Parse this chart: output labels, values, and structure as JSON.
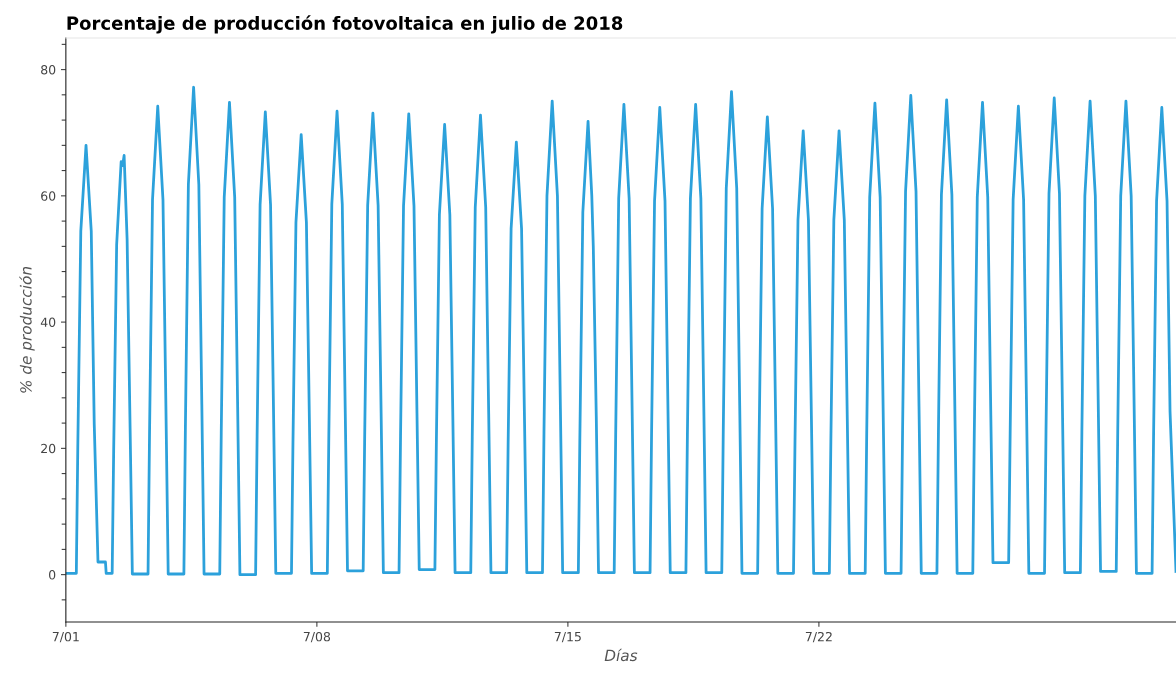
{
  "chart_data": {
    "type": "line",
    "title": "Porcentaje de producción fotovoltaica en julio de 2018",
    "xlabel": "Días",
    "ylabel": "% de producción",
    "xlim": [
      "2018-07-01T00:00",
      "2018-07-31T23:00"
    ],
    "ylim": [
      -7.5,
      85
    ],
    "xticks": [
      {
        "value": "2018-07-01",
        "label": "7/01"
      },
      {
        "value": "2018-07-08",
        "label": "7/08"
      },
      {
        "value": "2018-07-15",
        "label": "7/15"
      },
      {
        "value": "2018-07-22",
        "label": "7/22"
      }
    ],
    "yticks": [
      0,
      20,
      40,
      60,
      80
    ],
    "grid": false,
    "marker": "none",
    "line_style": "solid",
    "series": [
      {
        "color": "#2ca1db",
        "x": [
          "2018-07-01T00:00",
          "2018-07-01T07:00",
          "2018-07-01T08:00",
          "2018-07-01T10:00",
          "2018-07-01T13:30",
          "2018-07-01T17:00",
          "2018-07-01T19:00",
          "2018-07-01T21:30",
          "2018-07-02T02:30",
          "2018-07-02T03:00",
          "2018-07-02T07:00",
          "2018-07-02T08:00",
          "2018-07-02T10:00",
          "2018-07-02T13:00",
          "2018-07-02T14:00",
          "2018-07-02T15:00",
          "2018-07-02T17:00",
          "2018-07-02T19:00",
          "2018-07-02T20:30",
          "2018-07-03T07:00",
          "2018-07-03T08:00",
          "2018-07-03T10:00",
          "2018-07-03T13:30",
          "2018-07-03T17:00",
          "2018-07-03T19:00",
          "2018-07-03T20:30",
          "2018-07-04T07:00",
          "2018-07-04T08:00",
          "2018-07-04T10:00",
          "2018-07-04T13:30",
          "2018-07-04T17:00",
          "2018-07-04T19:00",
          "2018-07-04T20:30",
          "2018-07-05T07:00",
          "2018-07-05T08:00",
          "2018-07-05T10:00",
          "2018-07-05T13:30",
          "2018-07-05T17:00",
          "2018-07-05T19:00",
          "2018-07-05T20:30",
          "2018-07-06T07:00",
          "2018-07-06T08:00",
          "2018-07-06T10:00",
          "2018-07-06T13:30",
          "2018-07-06T17:00",
          "2018-07-06T19:00",
          "2018-07-06T20:30",
          "2018-07-07T07:00",
          "2018-07-07T08:00",
          "2018-07-07T10:00",
          "2018-07-07T13:30",
          "2018-07-07T17:00",
          "2018-07-07T19:00",
          "2018-07-07T20:30",
          "2018-07-08T07:00",
          "2018-07-08T08:00",
          "2018-07-08T10:00",
          "2018-07-08T13:30",
          "2018-07-08T17:00",
          "2018-07-08T19:00",
          "2018-07-08T20:30",
          "2018-07-09T07:00",
          "2018-07-09T08:00",
          "2018-07-09T10:00",
          "2018-07-09T13:30",
          "2018-07-09T17:00",
          "2018-07-09T19:00",
          "2018-07-09T20:30",
          "2018-07-10T07:00",
          "2018-07-10T08:00",
          "2018-07-10T10:00",
          "2018-07-10T13:30",
          "2018-07-10T17:00",
          "2018-07-10T19:00",
          "2018-07-10T20:30",
          "2018-07-11T07:00",
          "2018-07-11T08:00",
          "2018-07-11T10:00",
          "2018-07-11T13:30",
          "2018-07-11T17:00",
          "2018-07-11T19:00",
          "2018-07-11T20:30",
          "2018-07-12T07:00",
          "2018-07-12T08:00",
          "2018-07-12T10:00",
          "2018-07-12T13:30",
          "2018-07-12T17:00",
          "2018-07-12T19:00",
          "2018-07-12T20:30",
          "2018-07-13T07:00",
          "2018-07-13T08:00",
          "2018-07-13T10:00",
          "2018-07-13T13:30",
          "2018-07-13T17:00",
          "2018-07-13T19:00",
          "2018-07-13T20:30",
          "2018-07-14T07:00",
          "2018-07-14T08:00",
          "2018-07-14T10:00",
          "2018-07-14T13:30",
          "2018-07-14T17:00",
          "2018-07-14T19:00",
          "2018-07-14T20:30",
          "2018-07-15T07:00",
          "2018-07-15T08:00",
          "2018-07-15T10:00",
          "2018-07-15T13:30",
          "2018-07-15T16:00",
          "2018-07-15T17:00",
          "2018-07-15T19:00",
          "2018-07-15T20:30",
          "2018-07-16T07:00",
          "2018-07-16T08:00",
          "2018-07-16T10:00",
          "2018-07-16T13:30",
          "2018-07-16T17:00",
          "2018-07-16T19:00",
          "2018-07-16T20:30",
          "2018-07-17T07:00",
          "2018-07-17T08:00",
          "2018-07-17T10:00",
          "2018-07-17T13:30",
          "2018-07-17T17:00",
          "2018-07-17T19:00",
          "2018-07-17T20:30",
          "2018-07-18T07:00",
          "2018-07-18T08:00",
          "2018-07-18T10:00",
          "2018-07-18T13:30",
          "2018-07-18T17:00",
          "2018-07-18T19:00",
          "2018-07-18T20:30",
          "2018-07-19T07:00",
          "2018-07-19T08:00",
          "2018-07-19T10:00",
          "2018-07-19T13:30",
          "2018-07-19T17:00",
          "2018-07-19T19:00",
          "2018-07-19T20:30",
          "2018-07-20T07:00",
          "2018-07-20T08:00",
          "2018-07-20T10:00",
          "2018-07-20T13:30",
          "2018-07-20T17:00",
          "2018-07-20T19:00",
          "2018-07-20T20:30",
          "2018-07-21T07:00",
          "2018-07-21T08:00",
          "2018-07-21T10:00",
          "2018-07-21T13:30",
          "2018-07-21T17:00",
          "2018-07-21T19:00",
          "2018-07-21T20:30",
          "2018-07-22T07:00",
          "2018-07-22T08:00",
          "2018-07-22T10:00",
          "2018-07-22T13:30",
          "2018-07-22T17:00",
          "2018-07-22T19:00",
          "2018-07-22T20:30",
          "2018-07-23T07:00",
          "2018-07-23T08:00",
          "2018-07-23T10:00",
          "2018-07-23T13:30",
          "2018-07-23T17:00",
          "2018-07-23T19:00",
          "2018-07-23T20:30",
          "2018-07-24T07:00",
          "2018-07-24T08:00",
          "2018-07-24T10:00",
          "2018-07-24T13:30",
          "2018-07-24T17:00",
          "2018-07-24T19:00",
          "2018-07-24T20:30",
          "2018-07-25T07:00",
          "2018-07-25T08:00",
          "2018-07-25T10:00",
          "2018-07-25T13:30",
          "2018-07-25T17:00",
          "2018-07-25T19:00",
          "2018-07-25T20:30",
          "2018-07-26T07:00",
          "2018-07-26T08:00",
          "2018-07-26T10:00",
          "2018-07-26T13:30",
          "2018-07-26T17:00",
          "2018-07-26T19:00",
          "2018-07-26T20:30",
          "2018-07-27T07:00",
          "2018-07-27T08:00",
          "2018-07-27T10:00",
          "2018-07-27T13:30",
          "2018-07-27T17:00",
          "2018-07-27T19:00",
          "2018-07-27T20:30",
          "2018-07-28T07:00",
          "2018-07-28T08:00",
          "2018-07-28T10:00",
          "2018-07-28T13:30",
          "2018-07-28T17:00",
          "2018-07-28T19:00",
          "2018-07-28T20:30",
          "2018-07-29T07:00",
          "2018-07-29T08:00",
          "2018-07-29T10:00",
          "2018-07-29T13:30",
          "2018-07-29T17:00",
          "2018-07-29T19:00",
          "2018-07-29T20:30",
          "2018-07-30T07:00",
          "2018-07-30T08:00",
          "2018-07-30T10:00",
          "2018-07-30T13:30",
          "2018-07-30T17:00",
          "2018-07-30T19:00",
          "2018-07-30T20:30",
          "2018-07-31T07:00",
          "2018-07-31T08:00",
          "2018-07-31T10:00",
          "2018-07-31T13:30",
          "2018-07-31T17:00",
          "2018-07-31T19:00",
          "2018-07-31T23:00"
        ],
        "values": [
          0.2,
          0.2,
          20.4,
          54.4,
          68.0,
          54.4,
          23.8,
          2.0,
          2.0,
          0.2,
          0.2,
          19.6,
          52.3,
          65.4,
          64.8,
          66.4,
          53.1,
          23.2,
          0.1,
          0.1,
          22.3,
          59.4,
          74.2,
          59.4,
          26.0,
          0.1,
          0.1,
          23.2,
          61.8,
          77.2,
          61.8,
          27.0,
          0.1,
          0.1,
          22.4,
          59.8,
          74.8,
          59.8,
          26.2,
          0.0,
          0.0,
          22.0,
          58.6,
          73.3,
          58.6,
          25.7,
          0.2,
          0.2,
          20.9,
          55.8,
          69.7,
          55.8,
          24.4,
          0.2,
          0.2,
          22.0,
          58.7,
          73.4,
          58.7,
          25.7,
          0.6,
          0.6,
          21.9,
          58.5,
          73.1,
          58.5,
          25.6,
          0.3,
          0.3,
          21.9,
          58.4,
          73.0,
          58.4,
          25.6,
          0.8,
          0.8,
          21.4,
          57.0,
          71.3,
          57.0,
          25.0,
          0.3,
          0.3,
          21.8,
          58.2,
          72.8,
          58.2,
          25.5,
          0.3,
          0.3,
          20.6,
          54.8,
          68.5,
          54.8,
          24.0,
          0.3,
          0.3,
          22.5,
          60.0,
          75.0,
          60.0,
          26.3,
          0.3,
          0.3,
          21.5,
          57.4,
          71.8,
          60.0,
          52.0,
          25.1,
          0.3,
          0.3,
          22.4,
          59.6,
          74.5,
          59.6,
          26.1,
          0.3,
          0.3,
          22.2,
          59.2,
          74.0,
          59.2,
          25.9,
          0.3,
          0.3,
          22.4,
          59.6,
          74.5,
          59.6,
          26.1,
          0.3,
          0.3,
          23.0,
          61.2,
          76.5,
          61.2,
          26.8,
          0.2,
          0.2,
          21.8,
          58.0,
          72.5,
          58.0,
          25.4,
          0.2,
          0.2,
          21.1,
          56.2,
          70.3,
          56.2,
          24.6,
          0.2,
          0.2,
          21.1,
          56.2,
          70.3,
          56.2,
          24.6,
          0.2,
          0.2,
          22.4,
          59.8,
          74.7,
          59.8,
          26.1,
          0.2,
          0.2,
          22.8,
          60.7,
          75.9,
          60.7,
          26.6,
          0.2,
          0.2,
          22.6,
          60.2,
          75.2,
          60.2,
          26.3,
          0.2,
          0.2,
          22.4,
          59.8,
          74.8,
          59.8,
          26.2,
          1.9,
          1.9,
          22.3,
          59.4,
          74.2,
          59.4,
          26.0,
          0.2,
          0.2,
          22.7,
          60.4,
          75.5,
          60.4,
          26.4,
          0.3,
          0.3,
          22.5,
          60.0,
          75.0,
          60.0,
          26.3,
          0.5,
          0.5,
          22.5,
          60.0,
          75.0,
          60.0,
          26.3,
          0.2,
          0.2,
          22.2,
          59.2,
          74.0,
          59.2,
          25.9,
          0.5
        ]
      }
    ]
  }
}
